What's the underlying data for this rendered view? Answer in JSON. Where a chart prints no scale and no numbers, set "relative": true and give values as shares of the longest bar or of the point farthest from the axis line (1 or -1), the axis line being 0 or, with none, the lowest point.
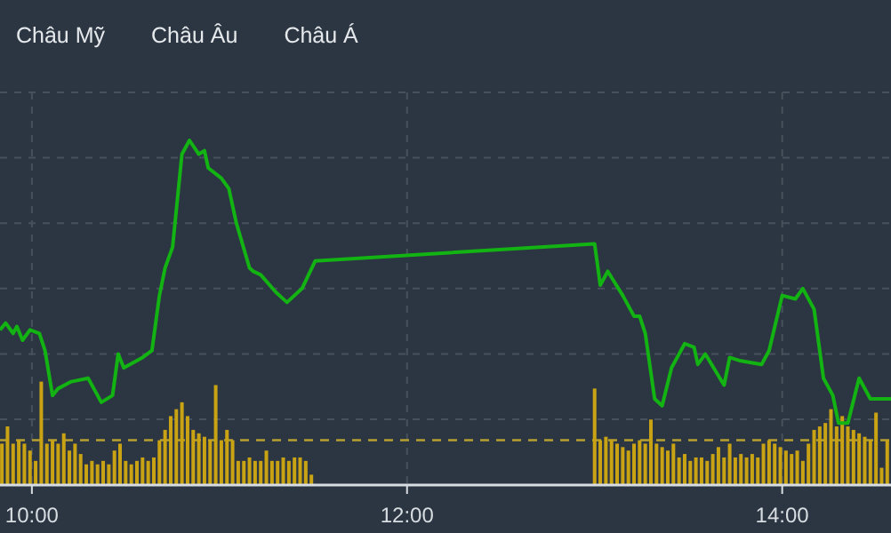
{
  "chart_data": {
    "type": "line",
    "relative": true,
    "grid": true,
    "marker": "none",
    "line_style": "solid",
    "annotations": [
      "Châu Mỹ",
      "Châu Âu",
      "Châu Á"
    ],
    "xlim": [
      9.83,
      14.58
    ],
    "xticks": [
      {
        "value": 10,
        "label": "10:00"
      },
      {
        "value": 12,
        "label": "12:00"
      },
      {
        "value": 14,
        "label": "14:00"
      }
    ],
    "ref_lines": [
      {
        "axis": "y",
        "value": 0.13,
        "label": null,
        "color": "#b8a030",
        "line_style": "dashed"
      }
    ],
    "series": [
      {
        "type": "bar",
        "color": "#c9a313",
        "x": [
          9.84,
          9.87,
          9.9,
          9.93,
          9.96,
          9.99,
          10.02,
          10.05,
          10.08,
          10.11,
          10.14,
          10.17,
          10.2,
          10.23,
          10.26,
          10.29,
          10.32,
          10.35,
          10.38,
          10.41,
          10.44,
          10.47,
          10.5,
          10.53,
          10.56,
          10.59,
          10.62,
          10.65,
          10.68,
          10.71,
          10.74,
          10.77,
          10.8,
          10.83,
          10.86,
          10.89,
          10.92,
          10.95,
          10.98,
          11.01,
          11.04,
          11.07,
          11.1,
          11.13,
          11.16,
          11.19,
          11.22,
          11.25,
          11.28,
          11.31,
          11.34,
          11.37,
          11.4,
          11.43,
          11.46,
          11.49,
          13.0,
          13.03,
          13.06,
          13.09,
          13.12,
          13.15,
          13.18,
          13.21,
          13.24,
          13.27,
          13.3,
          13.33,
          13.36,
          13.39,
          13.42,
          13.45,
          13.48,
          13.51,
          13.54,
          13.57,
          13.6,
          13.63,
          13.66,
          13.69,
          13.72,
          13.75,
          13.78,
          13.81,
          13.84,
          13.87,
          13.9,
          13.93,
          13.96,
          13.99,
          14.02,
          14.05,
          14.08,
          14.11,
          14.14,
          14.17,
          14.2,
          14.23,
          14.26,
          14.29,
          14.32,
          14.35,
          14.38,
          14.41,
          14.44,
          14.47,
          14.5,
          14.53,
          14.56
        ],
        "values": [
          0.12,
          0.17,
          0.12,
          0.13,
          0.12,
          0.1,
          0.07,
          0.3,
          0.12,
          0.13,
          0.12,
          0.15,
          0.1,
          0.12,
          0.09,
          0.06,
          0.07,
          0.06,
          0.07,
          0.06,
          0.1,
          0.12,
          0.07,
          0.06,
          0.07,
          0.08,
          0.07,
          0.08,
          0.13,
          0.16,
          0.2,
          0.22,
          0.24,
          0.2,
          0.16,
          0.15,
          0.14,
          0.13,
          0.29,
          0.13,
          0.16,
          0.13,
          0.07,
          0.07,
          0.08,
          0.07,
          0.07,
          0.1,
          0.07,
          0.07,
          0.08,
          0.07,
          0.08,
          0.08,
          0.07,
          0.03,
          0.28,
          0.13,
          0.14,
          0.13,
          0.12,
          0.11,
          0.1,
          0.12,
          0.13,
          0.12,
          0.19,
          0.12,
          0.11,
          0.1,
          0.12,
          0.08,
          0.09,
          0.07,
          0.08,
          0.08,
          0.07,
          0.09,
          0.11,
          0.08,
          0.12,
          0.08,
          0.09,
          0.08,
          0.09,
          0.08,
          0.12,
          0.13,
          0.12,
          0.11,
          0.1,
          0.09,
          0.1,
          0.07,
          0.12,
          0.16,
          0.17,
          0.18,
          0.22,
          0.17,
          0.2,
          0.17,
          0.16,
          0.15,
          0.14,
          0.13,
          0.21,
          0.05,
          0.13
        ]
      },
      {
        "color": "#12b312",
        "x": [
          9.83,
          9.86,
          9.9,
          9.92,
          9.95,
          9.99,
          10.04,
          10.07,
          10.11,
          10.14,
          10.21,
          10.3,
          10.37,
          10.43,
          10.46,
          10.49,
          10.59,
          10.64,
          10.68,
          10.71,
          10.75,
          10.8,
          10.82,
          10.84,
          10.89,
          10.92,
          10.94,
          11.01,
          11.05,
          11.09,
          11.16,
          11.18,
          11.22,
          11.3,
          11.36,
          11.44,
          11.51,
          13.0,
          13.03,
          13.07,
          13.15,
          13.21,
          13.24,
          13.27,
          13.32,
          13.36,
          13.41,
          13.48,
          13.53,
          13.55,
          13.59,
          13.69,
          13.72,
          13.78,
          13.89,
          13.93,
          14.0,
          14.07,
          14.11,
          14.17,
          14.22,
          14.27,
          14.3,
          14.35,
          14.41,
          14.47,
          14.52,
          14.58
        ],
        "values": [
          0.45,
          0.47,
          0.44,
          0.46,
          0.42,
          0.45,
          0.44,
          0.39,
          0.26,
          0.28,
          0.3,
          0.31,
          0.24,
          0.26,
          0.38,
          0.34,
          0.37,
          0.39,
          0.55,
          0.63,
          0.69,
          0.96,
          0.98,
          1.0,
          0.96,
          0.97,
          0.92,
          0.89,
          0.86,
          0.76,
          0.63,
          0.62,
          0.61,
          0.56,
          0.53,
          0.57,
          0.65,
          0.7,
          0.58,
          0.62,
          0.55,
          0.49,
          0.49,
          0.44,
          0.25,
          0.23,
          0.34,
          0.41,
          0.4,
          0.35,
          0.38,
          0.29,
          0.37,
          0.36,
          0.35,
          0.39,
          0.55,
          0.54,
          0.57,
          0.51,
          0.31,
          0.26,
          0.18,
          0.18,
          0.31,
          0.25,
          0.25,
          0.25
        ]
      }
    ]
  }
}
